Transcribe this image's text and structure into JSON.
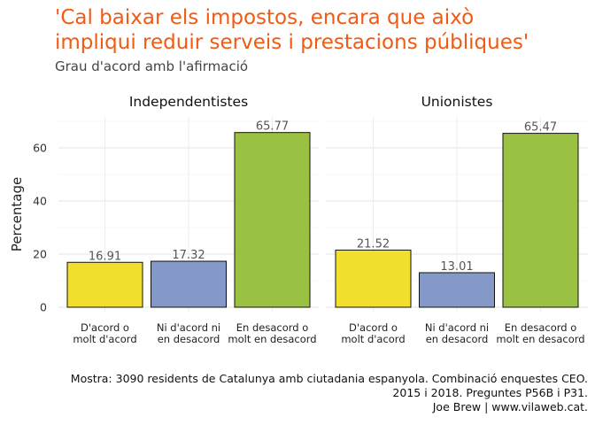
{
  "title_lines": [
    "'Cal baixar els impostos, encara que això",
    "impliqui reduir serveis i prestacions públiques'"
  ],
  "subtitle": "Grau d'acord amb l'afirmació",
  "caption_lines": [
    "Mostra: 3090 residents de Catalunya amb ciutadania espanyola. Combinació enquestes CEO.",
    "2015 i 2018. Preguntes P56B i P31.",
    "Joe Brew | www.vilaweb.cat."
  ],
  "chart_data": {
    "type": "bar",
    "ylabel": "Percentage",
    "xlabel": "",
    "ylim": [
      0,
      72
    ],
    "yticks": [
      0,
      20,
      40,
      60
    ],
    "grid": true,
    "categories": [
      [
        "D'acord o",
        "molt d'acord"
      ],
      [
        "Ni d'acord ni",
        "en desacord"
      ],
      [
        "En desacord o",
        "molt en desacord"
      ]
    ],
    "colors": [
      "#f2de2c",
      "#8499c8",
      "#9bc142"
    ],
    "panels": [
      {
        "name": "Independentistes",
        "values": [
          16.91,
          17.32,
          65.77
        ]
      },
      {
        "name": "Unionistes",
        "values": [
          21.52,
          13.01,
          65.47
        ]
      }
    ]
  }
}
